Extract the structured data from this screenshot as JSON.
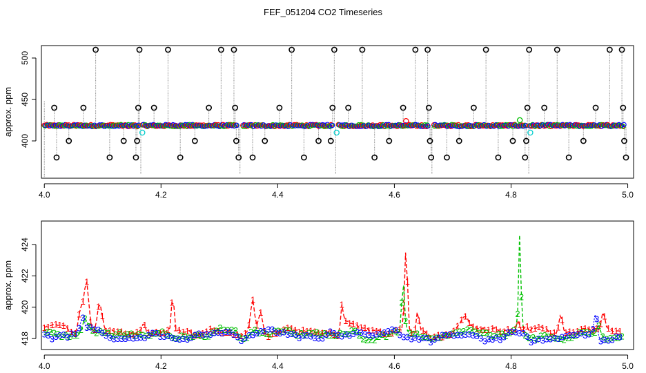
{
  "figure": {
    "title": "FEF_051204  CO2 Timeseries"
  },
  "colors": {
    "series1": "#ff0000",
    "series2": "#00c000",
    "series3": "#0000ff",
    "spike": "#000000",
    "dropout": "#00cccc",
    "guide": "#888888"
  },
  "chart_data": [
    {
      "type": "scatter",
      "title": "",
      "xlabel": "",
      "ylabel": "approx. ppm",
      "xlim": [
        3.995,
        5.01
      ],
      "ylim": [
        355,
        515
      ],
      "x_ticks": [
        4.0,
        4.2,
        4.4,
        4.6,
        4.8,
        5.0
      ],
      "x_tick_labels": [
        "4.0",
        "4.2",
        "4.4",
        "4.6",
        "4.8",
        "5.0"
      ],
      "y_ticks": [
        400,
        450,
        500
      ],
      "y_tick_labels": [
        "400",
        "450",
        "500"
      ],
      "grid": false,
      "legend": "none",
      "baseline_ppm": 418.5,
      "baseline_x_range": [
        4.0,
        4.995
      ],
      "gaps_x": [
        4.163,
        4.333,
        4.497,
        4.662,
        4.828
      ],
      "spikes": [
        {
          "x": 4.017,
          "y": 440
        },
        {
          "x": 4.021,
          "y": 380
        },
        {
          "x": 4.042,
          "y": 400
        },
        {
          "x": 4.067,
          "y": 440
        },
        {
          "x": 4.088,
          "y": 510
        },
        {
          "x": 4.112,
          "y": 380
        },
        {
          "x": 4.136,
          "y": 400
        },
        {
          "x": 4.157,
          "y": 380
        },
        {
          "x": 4.159,
          "y": 400
        },
        {
          "x": 4.161,
          "y": 440
        },
        {
          "x": 4.163,
          "y": 510
        },
        {
          "x": 4.188,
          "y": 440
        },
        {
          "x": 4.212,
          "y": 510
        },
        {
          "x": 4.233,
          "y": 380
        },
        {
          "x": 4.258,
          "y": 400
        },
        {
          "x": 4.282,
          "y": 440
        },
        {
          "x": 4.303,
          "y": 510
        },
        {
          "x": 4.325,
          "y": 510
        },
        {
          "x": 4.327,
          "y": 440
        },
        {
          "x": 4.329,
          "y": 400
        },
        {
          "x": 4.333,
          "y": 380
        },
        {
          "x": 4.357,
          "y": 380
        },
        {
          "x": 4.378,
          "y": 400
        },
        {
          "x": 4.403,
          "y": 440
        },
        {
          "x": 4.424,
          "y": 510
        },
        {
          "x": 4.445,
          "y": 380
        },
        {
          "x": 4.47,
          "y": 400
        },
        {
          "x": 4.491,
          "y": 400
        },
        {
          "x": 4.494,
          "y": 440
        },
        {
          "x": 4.497,
          "y": 510
        },
        {
          "x": 4.521,
          "y": 440
        },
        {
          "x": 4.545,
          "y": 510
        },
        {
          "x": 4.566,
          "y": 380
        },
        {
          "x": 4.591,
          "y": 400
        },
        {
          "x": 4.615,
          "y": 440
        },
        {
          "x": 4.636,
          "y": 510
        },
        {
          "x": 4.657,
          "y": 510
        },
        {
          "x": 4.659,
          "y": 440
        },
        {
          "x": 4.661,
          "y": 400
        },
        {
          "x": 4.663,
          "y": 380
        },
        {
          "x": 4.69,
          "y": 380
        },
        {
          "x": 4.711,
          "y": 400
        },
        {
          "x": 4.736,
          "y": 440
        },
        {
          "x": 4.757,
          "y": 510
        },
        {
          "x": 4.778,
          "y": 380
        },
        {
          "x": 4.803,
          "y": 400
        },
        {
          "x": 4.824,
          "y": 380
        },
        {
          "x": 4.826,
          "y": 400
        },
        {
          "x": 4.828,
          "y": 440
        },
        {
          "x": 4.831,
          "y": 510
        },
        {
          "x": 4.857,
          "y": 440
        },
        {
          "x": 4.879,
          "y": 510
        },
        {
          "x": 4.899,
          "y": 380
        },
        {
          "x": 4.924,
          "y": 400
        },
        {
          "x": 4.945,
          "y": 440
        },
        {
          "x": 4.969,
          "y": 510
        },
        {
          "x": 4.99,
          "y": 510
        },
        {
          "x": 4.992,
          "y": 440
        },
        {
          "x": 4.994,
          "y": 400
        },
        {
          "x": 4.997,
          "y": 380
        }
      ],
      "dropouts": [
        {
          "x": 4.168,
          "y": 410
        },
        {
          "x": 4.501,
          "y": 410
        },
        {
          "x": 4.833,
          "y": 410
        },
        {
          "x": 4.62,
          "y": 424
        },
        {
          "x": 4.815,
          "y": 425
        }
      ]
    },
    {
      "type": "line",
      "title": "",
      "xlabel": "",
      "ylabel": "approx. ppm",
      "xlim": [
        3.995,
        5.01
      ],
      "ylim": [
        417.3,
        425.5
      ],
      "x_ticks": [
        4.0,
        4.2,
        4.4,
        4.6,
        4.8,
        5.0
      ],
      "x_tick_labels": [
        "4.0",
        "4.2",
        "4.4",
        "4.6",
        "4.8",
        "5.0"
      ],
      "y_ticks": [
        418,
        420,
        422,
        424
      ],
      "y_tick_labels": [
        "418",
        "420",
        "422",
        "424"
      ],
      "grid": false,
      "legend": "none",
      "marker_labels": [
        "1",
        "2",
        "3"
      ],
      "x_start": 4.0,
      "x_end": 4.99,
      "samples": 300,
      "series_base": [
        418.5,
        418.3,
        418.2
      ],
      "series_gap_x": [
        4.163,
        4.333,
        4.497,
        4.662,
        4.828
      ],
      "bumps": [
        {
          "series": 0,
          "x": 4.072,
          "h": 3.3,
          "w": 0.006
        },
        {
          "series": 0,
          "x": 4.062,
          "h": 1.6,
          "w": 0.005
        },
        {
          "series": 0,
          "x": 4.095,
          "h": 1.8,
          "w": 0.006
        },
        {
          "series": 1,
          "x": 4.07,
          "h": 0.8,
          "w": 0.006
        },
        {
          "series": 2,
          "x": 4.065,
          "h": 0.9,
          "w": 0.005
        },
        {
          "series": 0,
          "x": 4.22,
          "h": 2.2,
          "w": 0.003
        },
        {
          "series": 0,
          "x": 4.17,
          "h": 0.8,
          "w": 0.005
        },
        {
          "series": 0,
          "x": 4.357,
          "h": 2.2,
          "w": 0.005
        },
        {
          "series": 0,
          "x": 4.37,
          "h": 1.5,
          "w": 0.005
        },
        {
          "series": 1,
          "x": 4.36,
          "h": 0.4,
          "w": 0.006
        },
        {
          "series": 0,
          "x": 4.51,
          "h": 1.5,
          "w": 0.003
        },
        {
          "series": 0,
          "x": 4.62,
          "h": 5.4,
          "w": 0.0035
        },
        {
          "series": 1,
          "x": 4.615,
          "h": 3.2,
          "w": 0.0035
        },
        {
          "series": 0,
          "x": 4.64,
          "h": 1.3,
          "w": 0.003
        },
        {
          "series": 1,
          "x": 4.815,
          "h": 6.3,
          "w": 0.0028
        },
        {
          "series": 0,
          "x": 4.812,
          "h": 0.8,
          "w": 0.003
        },
        {
          "series": 0,
          "x": 4.885,
          "h": 1.2,
          "w": 0.004
        },
        {
          "series": 2,
          "x": 4.945,
          "h": 1.6,
          "w": 0.004
        },
        {
          "series": 0,
          "x": 4.958,
          "h": 1.3,
          "w": 0.004
        },
        {
          "series": 1,
          "x": 4.95,
          "h": 0.7,
          "w": 0.005
        },
        {
          "series": 0,
          "x": 4.52,
          "h": 0.5,
          "w": 0.01
        },
        {
          "series": 0,
          "x": 4.72,
          "h": 0.5,
          "w": 0.008
        }
      ]
    }
  ]
}
